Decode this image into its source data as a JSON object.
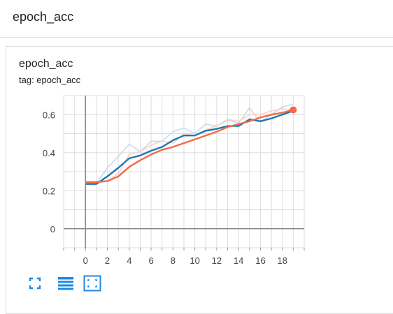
{
  "header": {
    "title": "epoch_acc"
  },
  "card": {
    "title": "epoch_acc",
    "tag": "tag: epoch_acc"
  },
  "toolbar": {
    "buttons": [
      {
        "icon": "fullscreen-icon"
      },
      {
        "icon": "data-table-icon"
      },
      {
        "icon": "fit-domain-icon"
      }
    ]
  },
  "colors": {
    "series_blue": "#1f77b4",
    "series_orange": "#f26b43",
    "raw_blue": "#c6dcec",
    "raw_orange": "#fbd0c2",
    "grid": "#dddddd",
    "axis": "#999999",
    "icon": "#1e88e5"
  },
  "chart_data": {
    "type": "line",
    "xlim": [
      -2,
      20
    ],
    "ylim": [
      -0.1,
      0.7
    ],
    "xticks": [
      0,
      2,
      4,
      6,
      8,
      10,
      12,
      14,
      16,
      18
    ],
    "yticks": [
      0,
      0.2,
      0.4,
      0.6
    ],
    "ytick_labels": [
      "0",
      "0.2",
      "0.4",
      "0.6"
    ],
    "grid": true,
    "series": [
      {
        "style": "raw",
        "color": "#c6dcec",
        "x": [
          0,
          1,
          2,
          3,
          4,
          5,
          6,
          7,
          8,
          9,
          10,
          11,
          12,
          13,
          14,
          15,
          16,
          17,
          18,
          19
        ],
        "values": [
          0.24,
          0.24,
          0.32,
          0.38,
          0.445,
          0.405,
          0.46,
          0.46,
          0.51,
          0.53,
          0.5,
          0.55,
          0.54,
          0.57,
          0.555,
          0.635,
          0.56,
          0.6,
          0.64,
          0.655
        ]
      },
      {
        "style": "raw",
        "color": "#fbd0c2",
        "x": [
          0,
          1,
          2,
          3,
          4,
          5,
          6,
          7,
          8,
          9,
          10,
          11,
          12,
          13,
          14,
          15,
          16,
          17,
          18,
          19
        ],
        "values": [
          0.245,
          0.245,
          0.25,
          0.29,
          0.39,
          0.405,
          0.44,
          0.46,
          0.45,
          0.5,
          0.49,
          0.52,
          0.54,
          0.575,
          0.565,
          0.6,
          0.6,
          0.62,
          0.63,
          0.625
        ]
      },
      {
        "style": "smoothed",
        "color": "#1f77b4",
        "x": [
          0,
          1,
          2,
          3,
          4,
          5,
          6,
          7,
          8,
          9,
          10,
          11,
          12,
          13,
          14,
          15,
          16,
          17,
          18,
          19
        ],
        "values": [
          0.235,
          0.235,
          0.275,
          0.32,
          0.37,
          0.385,
          0.41,
          0.43,
          0.465,
          0.49,
          0.49,
          0.515,
          0.525,
          0.54,
          0.54,
          0.575,
          0.565,
          0.58,
          0.6,
          0.62
        ]
      },
      {
        "style": "smoothed",
        "color": "#f26b43",
        "x": [
          0,
          1,
          2,
          3,
          4,
          5,
          6,
          7,
          8,
          9,
          10,
          11,
          12,
          13,
          14,
          15,
          16,
          17,
          18,
          19
        ],
        "values": [
          0.245,
          0.245,
          0.25,
          0.275,
          0.325,
          0.36,
          0.39,
          0.415,
          0.43,
          0.45,
          0.47,
          0.49,
          0.51,
          0.535,
          0.55,
          0.565,
          0.585,
          0.6,
          0.61,
          0.625
        ]
      }
    ]
  }
}
